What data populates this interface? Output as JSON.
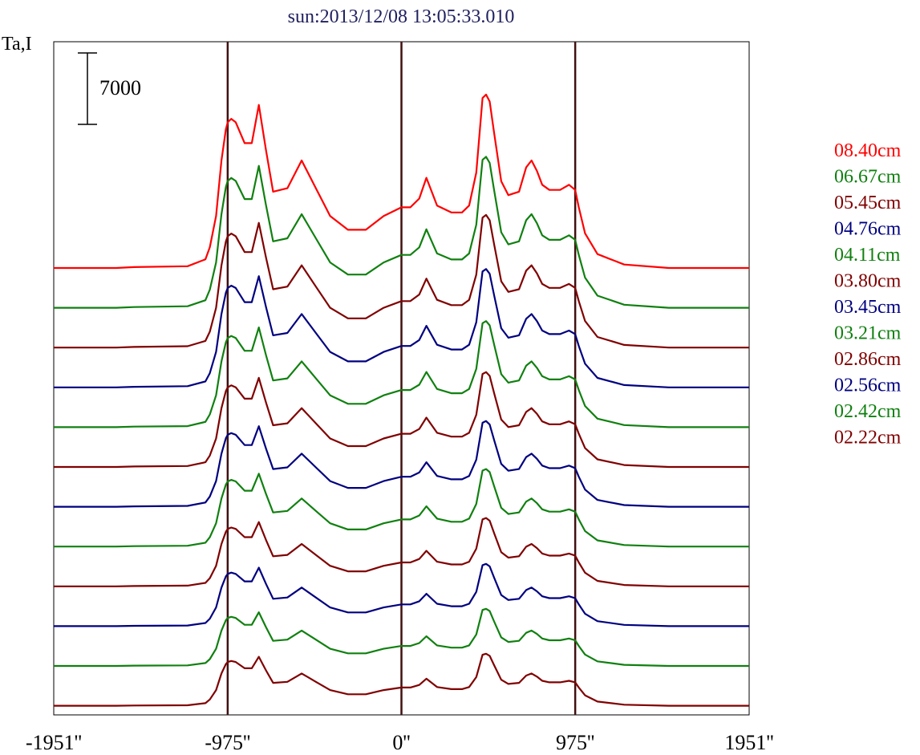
{
  "chart_data": {
    "type": "line",
    "title": "sun:2013/12/08 13:05:33.010",
    "ylabel": "Ta,I",
    "xlabel": "",
    "x_range": [
      -1951,
      1951
    ],
    "x_ticks": [
      {
        "value": -1951,
        "label": "-1951''"
      },
      {
        "value": -975,
        "label": "-975''"
      },
      {
        "value": 0,
        "label": "0''"
      },
      {
        "value": 975,
        "label": "975''"
      },
      {
        "value": 1951,
        "label": "1951''"
      }
    ],
    "vertical_markers": [
      -975,
      0,
      975
    ],
    "scale_bar": {
      "value": 7000,
      "label": "7000"
    },
    "grid": false,
    "legend_position": "right",
    "colors": {
      "red": "#ff0000",
      "green": "#108010",
      "maroon": "#800000",
      "navy": "#000080",
      "marker": "#401010"
    },
    "profile_x": [
      -1951,
      -1600,
      -1500,
      -1200,
      -1100,
      -1075,
      -1040,
      -1010,
      -985,
      -975,
      -955,
      -930,
      -880,
      -840,
      -800,
      -760,
      -720,
      -640,
      -560,
      -480,
      -400,
      -300,
      -200,
      -100,
      0,
      50,
      100,
      140,
      200,
      280,
      340,
      380,
      420,
      455,
      475,
      495,
      520,
      560,
      600,
      660,
      700,
      730,
      760,
      790,
      830,
      890,
      940,
      975,
      995,
      1030,
      1100,
      1250,
      1500,
      1951
    ],
    "profile_y": [
      0,
      0,
      0.005,
      0.01,
      0.05,
      0.12,
      0.3,
      0.62,
      0.8,
      0.84,
      0.86,
      0.84,
      0.72,
      0.72,
      0.94,
      0.68,
      0.44,
      0.46,
      0.62,
      0.46,
      0.3,
      0.22,
      0.22,
      0.3,
      0.35,
      0.35,
      0.4,
      0.52,
      0.36,
      0.32,
      0.32,
      0.36,
      0.55,
      0.98,
      1.0,
      0.96,
      0.78,
      0.5,
      0.42,
      0.44,
      0.58,
      0.62,
      0.56,
      0.48,
      0.45,
      0.45,
      0.48,
      0.45,
      0.35,
      0.2,
      0.08,
      0.02,
      0.0,
      0.0
    ],
    "series": [
      {
        "name": "08.40cm",
        "color": "#ff0000",
        "peak": 17000
      },
      {
        "name": "06.67cm",
        "color": "#108010",
        "peak": 14800
      },
      {
        "name": "05.45cm",
        "color": "#800000",
        "peak": 13000
      },
      {
        "name": "04.76cm",
        "color": "#000080",
        "peak": 11600
      },
      {
        "name": "04.11cm",
        "color": "#108010",
        "peak": 10400
      },
      {
        "name": "03.80cm",
        "color": "#800000",
        "peak": 9300
      },
      {
        "name": "03.45cm",
        "color": "#000080",
        "peak": 8400
      },
      {
        "name": "03.21cm",
        "color": "#108010",
        "peak": 7600
      },
      {
        "name": "02.86cm",
        "color": "#800000",
        "peak": 6700
      },
      {
        "name": "02.56cm",
        "color": "#000080",
        "peak": 6100
      },
      {
        "name": "02.42cm",
        "color": "#108010",
        "peak": 5600
      },
      {
        "name": "02.22cm",
        "color": "#800000",
        "peak": 5100
      }
    ]
  }
}
